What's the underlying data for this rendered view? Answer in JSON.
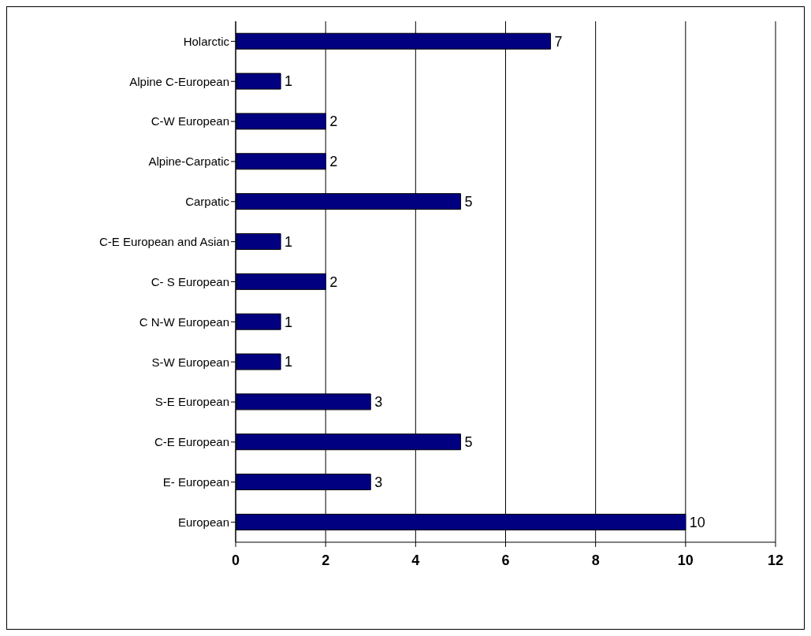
{
  "chart_data": {
    "type": "bar",
    "orientation": "horizontal",
    "categories": [
      "Holarctic",
      "Alpine C-European",
      "C-W European",
      "Alpine-Carpatic",
      "Carpatic",
      "C-E European and Asian",
      "C- S European",
      "C N-W European",
      "S-W European",
      "S-E European",
      "C-E European",
      "E- European",
      "European"
    ],
    "values": [
      7,
      1,
      2,
      2,
      5,
      1,
      2,
      1,
      1,
      3,
      5,
      3,
      10
    ],
    "color": "#000080",
    "xlim": [
      0,
      12
    ],
    "xticks": [
      0,
      2,
      4,
      6,
      8,
      10,
      12
    ],
    "grid": "x",
    "data_labels": true
  }
}
